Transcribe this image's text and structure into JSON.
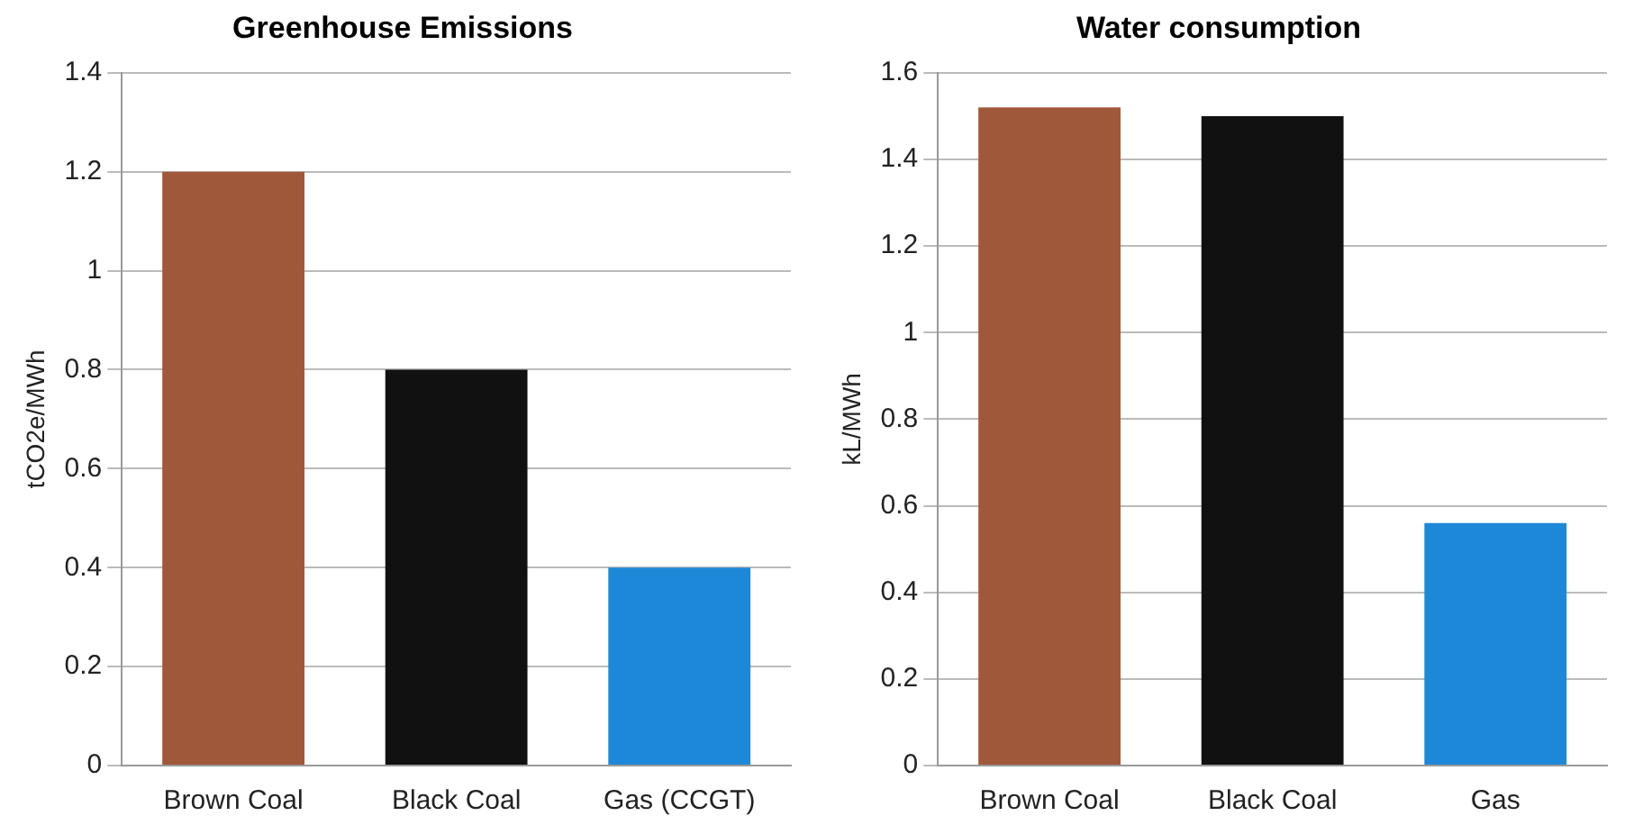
{
  "chart_data": [
    {
      "type": "bar",
      "title": "Greenhouse Emissions",
      "ylabel": "tCO2e/MWh",
      "categories": [
        "Brown Coal",
        "Black Coal",
        "Gas (CCGT)"
      ],
      "values": [
        1.2,
        0.8,
        0.4
      ],
      "colors": [
        "#a0583a",
        "#111111",
        "#1e88d8"
      ],
      "ylim": [
        0,
        1.4
      ],
      "yticks": [
        0,
        0.2,
        0.4,
        0.6,
        0.8,
        1,
        1.2,
        1.4
      ],
      "grid": "y",
      "legend": false
    },
    {
      "type": "bar",
      "title": "Water consumption",
      "ylabel": "kL/MWh",
      "categories": [
        "Brown Coal",
        "Black Coal",
        "Gas"
      ],
      "values": [
        1.52,
        1.5,
        0.56
      ],
      "colors": [
        "#a0583a",
        "#111111",
        "#1e88d8"
      ],
      "ylim": [
        0,
        1.6
      ],
      "yticks": [
        0,
        0.2,
        0.4,
        0.6,
        0.8,
        1,
        1.2,
        1.4,
        1.6
      ],
      "grid": "y",
      "legend": false
    }
  ]
}
